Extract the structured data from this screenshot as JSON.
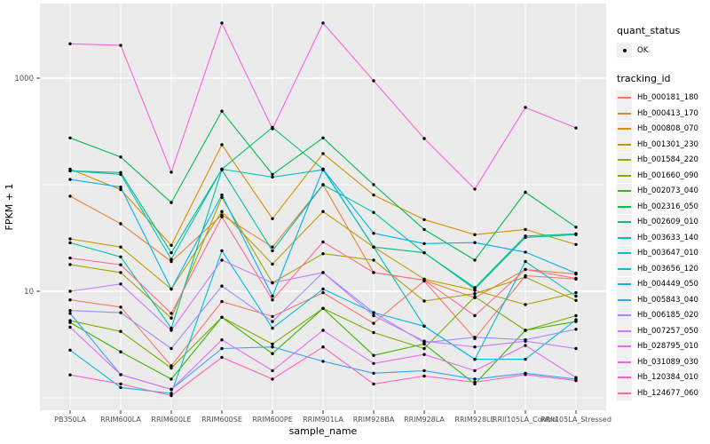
{
  "chart_data": {
    "type": "line",
    "title": "",
    "xlabel": "sample_name",
    "ylabel": "FPKM + 1",
    "y_scale": "log10",
    "ylim": [
      0.9,
      4500
    ],
    "y_major_ticks": [
      10,
      1000
    ],
    "y_major_tick_labels": [
      "10",
      "1000"
    ],
    "y_minor_gridlines": [
      1,
      100
    ],
    "grid": "on",
    "legend_position": "right",
    "point_marker": "black-dot",
    "categories": [
      "PB350LA",
      "RRIM600LA",
      "RRIM600LE",
      "RRIM600SE",
      "RRIM600PE",
      "RRIM901LA",
      "RRIM928BA",
      "RRIM928LA",
      "RRIM928LE",
      "RRII105LA_Control",
      "RRII105LA_Stressed"
    ],
    "series": [
      {
        "name": "Hb_000181_180",
        "color": "#F8766D",
        "values": [
          8.3,
          7.1,
          2.0,
          8.0,
          5.8,
          9.7,
          5.0,
          12.5,
          3.6,
          14.0,
          13.0
        ]
      },
      {
        "name": "Hb_000413_170",
        "color": "#EA8331",
        "values": [
          78,
          43,
          19,
          52,
          26,
          100,
          15,
          12.7,
          8.7,
          16,
          14.5
        ]
      },
      {
        "name": "Hb_000808_070",
        "color": "#D89000",
        "values": [
          140,
          90,
          27,
          237,
          48,
          196,
          80,
          47,
          34,
          38,
          27.5
        ]
      },
      {
        "name": "Hb_001301_230",
        "color": "#C09B00",
        "values": [
          31,
          26,
          10.5,
          56,
          18,
          56,
          26,
          13,
          10.2,
          7.5,
          9.7
        ]
      },
      {
        "name": "Hb_001584_220",
        "color": "#A3A500",
        "values": [
          17.8,
          15,
          5.6,
          76,
          12,
          22.5,
          19.6,
          8.1,
          9.5,
          13.6,
          8.2
        ]
      },
      {
        "name": "Hb_001660_090",
        "color": "#7CAE00",
        "values": [
          5.3,
          4.2,
          1.9,
          5.7,
          3.2,
          6.9,
          4.1,
          2.9,
          8.9,
          4.3,
          5.9
        ]
      },
      {
        "name": "Hb_002073_040",
        "color": "#39B600",
        "values": [
          5.1,
          2.7,
          1.5,
          5.7,
          2.6,
          6.9,
          2.5,
          3.2,
          1.35,
          4.3,
          5.2
        ]
      },
      {
        "name": "Hb_002316_050",
        "color": "#00BB4E",
        "values": [
          275,
          182,
          68,
          490,
          125,
          275,
          100,
          38,
          19.6,
          85,
          40
        ]
      },
      {
        "name": "Hb_002609_010",
        "color": "#00BF7D",
        "values": [
          135,
          130,
          23,
          140,
          345,
          140,
          26,
          23,
          10.8,
          33,
          34.6
        ]
      },
      {
        "name": "Hb_003633_140",
        "color": "#00C1A3",
        "values": [
          28.5,
          21,
          4.5,
          138,
          24,
          100,
          55,
          23,
          10.5,
          32,
          34
        ]
      },
      {
        "name": "Hb_003647_010",
        "color": "#00BFC4",
        "values": [
          135,
          125,
          20,
          140,
          118,
          138,
          26,
          4.7,
          2.3,
          19,
          9.0
        ]
      },
      {
        "name": "Hb_003656_120",
        "color": "#00BAE0",
        "values": [
          2.8,
          1.25,
          1.1,
          24,
          4.5,
          10.5,
          6.3,
          4.7,
          2.3,
          2.3,
          5.4
        ]
      },
      {
        "name": "Hb_004449_050",
        "color": "#00B0F6",
        "values": [
          112,
          95,
          10.5,
          80,
          9.0,
          140,
          35,
          28,
          28.6,
          23.3,
          14.8
        ]
      },
      {
        "name": "Hb_005843_040",
        "color": "#35A2FF",
        "values": [
          6.2,
          1.65,
          1.2,
          2.9,
          3.0,
          2.2,
          1.7,
          1.8,
          1.5,
          1.7,
          1.5
        ]
      },
      {
        "name": "Hb_006185_020",
        "color": "#9590FF",
        "values": [
          6.6,
          6.3,
          2.9,
          11.2,
          5.2,
          15,
          6.3,
          3.3,
          3.7,
          3.5,
          4.4
        ]
      },
      {
        "name": "Hb_007257_050",
        "color": "#C77CFF",
        "values": [
          10,
          11.7,
          4.3,
          19.6,
          12,
          15,
          5.9,
          3.4,
          3.0,
          3.4,
          2.9
        ]
      },
      {
        "name": "Hb_028795_010",
        "color": "#E76BF3",
        "values": [
          4.6,
          1.65,
          1.2,
          3.5,
          1.8,
          4.3,
          2.1,
          2.55,
          1.8,
          3.1,
          1.55
        ]
      },
      {
        "name": "Hb_031089_030",
        "color": "#FA62DB",
        "values": [
          2100,
          2030,
          131,
          3290,
          335,
          3290,
          944,
          271,
          91,
          531,
          341
        ]
      },
      {
        "name": "Hb_120384_010",
        "color": "#FF62BC",
        "values": [
          1.64,
          1.35,
          1.05,
          2.4,
          1.5,
          3.0,
          1.35,
          1.6,
          1.4,
          1.65,
          1.45
        ]
      },
      {
        "name": "Hb_124677_060",
        "color": "#FF6A98",
        "values": [
          20.5,
          17.7,
          6.2,
          50,
          8.3,
          29,
          15,
          12.7,
          5.9,
          16,
          13.2
        ]
      }
    ],
    "legend": {
      "quant_status_title": "quant_status",
      "quant_status_items": [
        {
          "label": "OK",
          "marker": "point",
          "color": "#000000"
        }
      ],
      "tracking_id_title": "tracking_id"
    }
  },
  "style_colors": {
    "panel_background": "#EBEBEB",
    "gridline": "#FFFFFF",
    "tick_label": "#4D4D4D",
    "axis_title": "#000000",
    "legend_key_background": "#F0F0F0",
    "point": "#000000"
  }
}
